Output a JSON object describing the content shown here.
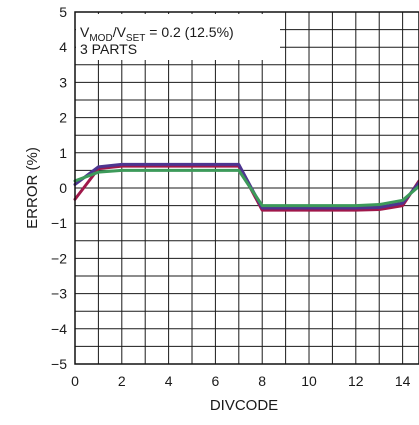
{
  "chart_data": {
    "type": "line",
    "title": "",
    "xlabel": "DIVCODE",
    "ylabel": "ERROR (%)",
    "xlim": [
      0,
      14.7
    ],
    "ylim": [
      -5,
      5
    ],
    "x_ticks": [
      0,
      2,
      4,
      6,
      8,
      10,
      12,
      14
    ],
    "y_ticks": [
      5,
      4,
      3,
      2,
      1,
      0,
      -1,
      -2,
      -3,
      -4,
      -5
    ],
    "x_tick_labels": [
      "0",
      "2",
      "4",
      "6",
      "8",
      "10",
      "12",
      "14"
    ],
    "y_tick_labels": [
      "5",
      "4",
      "3",
      "2",
      "1",
      "0",
      "−1",
      "−2",
      "−3",
      "−4",
      "−5"
    ],
    "grid": true,
    "annotation": {
      "v1": "V",
      "sub1": "MOD",
      "slash": "/V",
      "sub2": "SET",
      "rest": " = 0.2 (12.5%)",
      "line2": "3 PARTS"
    },
    "series": [
      {
        "color": "#a0184a",
        "x": [
          0,
          1,
          2,
          3,
          4,
          5,
          6,
          7,
          8,
          9,
          10,
          11,
          12,
          13,
          14,
          14.7
        ],
        "y": [
          -0.32,
          0.55,
          0.62,
          0.62,
          0.62,
          0.62,
          0.62,
          0.62,
          -0.63,
          -0.63,
          -0.63,
          -0.63,
          -0.63,
          -0.61,
          -0.5,
          0.2
        ]
      },
      {
        "color": "#4d3590",
        "x": [
          0,
          1,
          2,
          3,
          4,
          5,
          6,
          7,
          8,
          9,
          10,
          11,
          12,
          13,
          14,
          14.7
        ],
        "y": [
          0.1,
          0.6,
          0.67,
          0.67,
          0.67,
          0.67,
          0.67,
          0.67,
          -0.57,
          -0.57,
          -0.57,
          -0.57,
          -0.57,
          -0.55,
          -0.43,
          0.15
        ]
      },
      {
        "color": "#3d9a5a",
        "x": [
          0,
          1,
          2,
          3,
          4,
          5,
          6,
          7,
          8,
          9,
          10,
          11,
          12,
          13,
          14,
          14.7
        ],
        "y": [
          0.2,
          0.45,
          0.5,
          0.5,
          0.5,
          0.5,
          0.5,
          0.5,
          -0.5,
          -0.5,
          -0.5,
          -0.5,
          -0.5,
          -0.47,
          -0.35,
          0.05
        ]
      }
    ]
  }
}
